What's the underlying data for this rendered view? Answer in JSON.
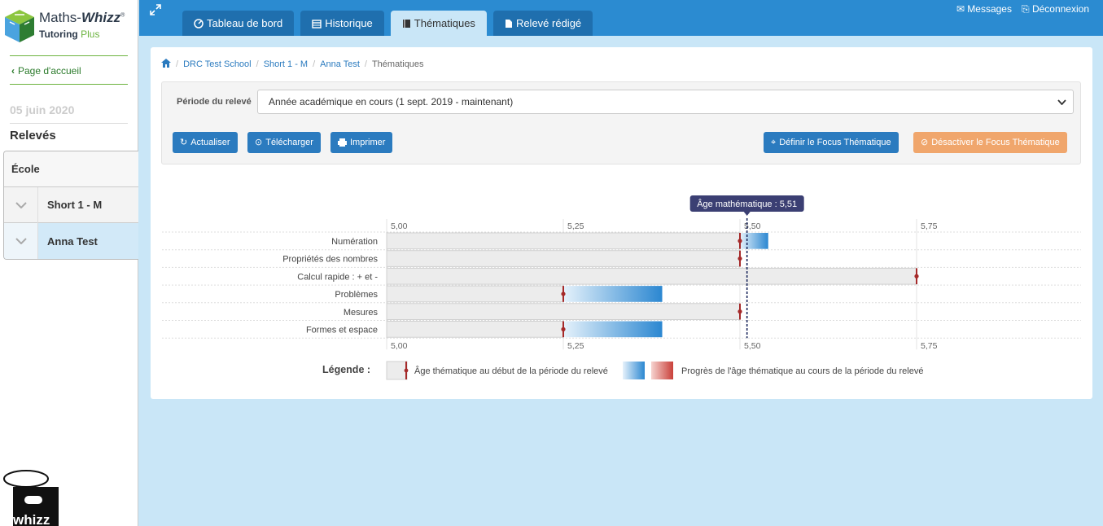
{
  "sidebar": {
    "brand": "Maths-",
    "brand_bold": "Whizz",
    "brand_reg": "®",
    "tutoring": "Tutoring",
    "plus": "Plus",
    "home_link": "Page d'accueil",
    "date": "05 juin 2020",
    "releves_heading": "Relevés",
    "tree": {
      "root": "École",
      "class": "Short 1 - M",
      "student": "Anna Test"
    },
    "footer_logo_text": "whizz"
  },
  "topbar": {
    "tabs": [
      {
        "label": "Tableau de bord",
        "icon": "dashboard-icon"
      },
      {
        "label": "Historique",
        "icon": "calendar-icon"
      },
      {
        "label": "Thématiques",
        "icon": "book-icon"
      },
      {
        "label": "Relevé rédigé",
        "icon": "file-icon"
      }
    ],
    "messages": "Messages",
    "logout": "Déconnexion"
  },
  "breadcrumb": {
    "school": "DRC Test School",
    "class": "Short 1 - M",
    "student": "Anna Test",
    "current": "Thématiques"
  },
  "filter": {
    "period_label": "Période du relevé",
    "period_value": "Année académique en cours (1 sept. 2019 - maintenant)",
    "buttons": {
      "refresh": "Actualiser",
      "download": "Télécharger",
      "print": "Imprimer",
      "set_focus": "Définir le Focus Thématique",
      "disable_focus": "Désactiver le Focus Thématique"
    }
  },
  "colors": {
    "accent": "#2b8bd1",
    "marker": "#a52a2a",
    "orange": "#f0a66c"
  },
  "chart_data": {
    "type": "bar",
    "title": "",
    "xlim": [
      5.0,
      5.99
    ],
    "ticks": [
      "5,00",
      "5,25",
      "5,50",
      "5,75"
    ],
    "tick_values": [
      5.0,
      5.25,
      5.5,
      5.75
    ],
    "maths_age_label": "Âge mathématique : 5,51",
    "maths_age": 5.51,
    "categories": [
      "Numération",
      "Propriétés des nombres",
      "Calcul rapide : + et -",
      "Problèmes",
      "Mesures",
      "Formes et espace"
    ],
    "series": [
      {
        "name": "Âge thématique au début de la période du relevé",
        "values": [
          5.5,
          5.5,
          5.75,
          5.25,
          5.5,
          5.25
        ]
      },
      {
        "name": "Progrès de l'âge thématique au cours de la période du relevé",
        "values": [
          0.04,
          0.0,
          0.0,
          0.14,
          0.0,
          0.14
        ]
      }
    ],
    "legend_title": "Légende :"
  }
}
